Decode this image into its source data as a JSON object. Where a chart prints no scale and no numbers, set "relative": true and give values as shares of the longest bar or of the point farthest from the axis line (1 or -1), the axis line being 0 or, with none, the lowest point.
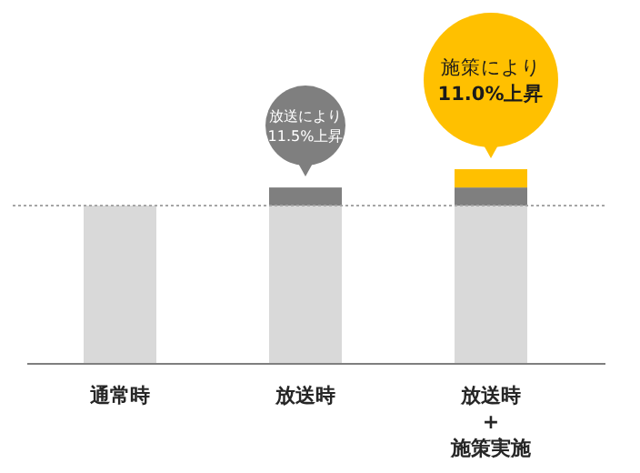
{
  "chart_data": {
    "type": "bar",
    "stacked": true,
    "relative": true,
    "categories": [
      "通常時",
      "放送時",
      "放送時\n+\n施策実施"
    ],
    "series": [
      {
        "color": "#d9d9d9",
        "values": [
          0.813,
          0.813,
          0.813
        ]
      },
      {
        "color": "#7f7f7f",
        "values": [
          null,
          0.093,
          0.093
        ]
      },
      {
        "color": "#ffc000",
        "values": [
          null,
          null,
          0.094
        ]
      }
    ],
    "ref_lines": [
      {
        "axis": "y",
        "value": 0.813,
        "color": "#a6a6a6",
        "line_style": "dotted"
      }
    ],
    "annotations": [
      "放送により\n11.5%上昇",
      "施策により\n**11.0%上昇**"
    ]
  }
}
